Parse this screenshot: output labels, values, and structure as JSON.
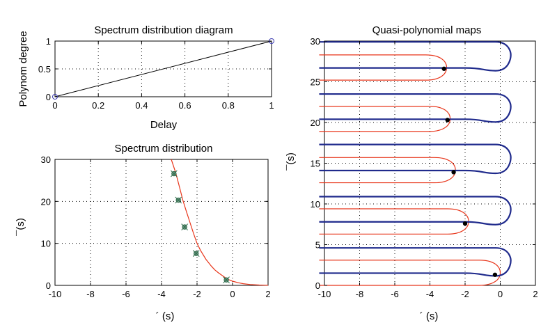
{
  "chart_data": [
    {
      "type": "line",
      "title": "Spectrum distribution diagram",
      "xlabel": "Delay",
      "ylabel": "Polynom degree",
      "xlim": [
        0,
        1
      ],
      "ylim": [
        0,
        1
      ],
      "xticks": [
        "0",
        "0.2",
        "0.4",
        "0.6",
        "0.8",
        "1"
      ],
      "yticks": [
        "0",
        "0.5",
        "1"
      ],
      "grid": true,
      "series": [
        {
          "x": [
            0,
            1
          ],
          "y": [
            0,
            1
          ],
          "color": "#000000",
          "markers": "circle",
          "marker_color": "#3b3bb0"
        }
      ]
    },
    {
      "type": "scatter",
      "title": "Spectrum distribution",
      "xlabel": "´ (s)",
      "ylabel": "¯(s)",
      "xlim": [
        -10,
        2
      ],
      "ylim": [
        0,
        30
      ],
      "xticks": [
        "-10",
        "-8",
        "-6",
        "-4",
        "-2",
        "0",
        "2"
      ],
      "yticks": [
        "0",
        "10",
        "20",
        "30"
      ],
      "grid": true,
      "series": [
        {
          "type": "line",
          "color": "#e8351a",
          "x": [
            -3.45,
            -3.2,
            -3.0,
            -2.8,
            -2.6,
            -2.4,
            -2.2,
            -2.0,
            -1.8,
            -1.5,
            -1.2,
            -1.0,
            -0.8,
            -0.6,
            -0.4,
            -0.2,
            0.0,
            0.3,
            0.6,
            1.0,
            1.5,
            2.0
          ],
          "y": [
            30.0,
            26.8,
            23.6,
            20.3,
            17.6,
            15.0,
            12.4,
            10.0,
            8.3,
            6.2,
            4.6,
            3.7,
            3.0,
            2.4,
            1.8,
            1.35,
            1.0,
            0.65,
            0.4,
            0.2,
            0.08,
            0.02
          ]
        },
        {
          "type": "scatter",
          "color": "#2f6b4a",
          "marker": "star",
          "x": [
            -3.3,
            -3.05,
            -2.7,
            -2.05,
            -0.35
          ],
          "y": [
            26.6,
            20.3,
            13.9,
            7.6,
            1.3
          ]
        }
      ]
    },
    {
      "type": "line",
      "title": "Quasi-polynomial maps",
      "xlabel": "´ (s)",
      "ylabel": "¯(s)",
      "xlim": [
        -10,
        2
      ],
      "ylim": [
        0,
        30
      ],
      "xticks": [
        "-10",
        "-8",
        "-6",
        "-4",
        "-2",
        "0",
        "2"
      ],
      "yticks": [
        "0",
        "5",
        "10",
        "15",
        "20",
        "25",
        "30"
      ],
      "grid": true,
      "series": [
        {
          "color": "#1f2a8c",
          "loops": [
            {
              "y_low": 1.5,
              "y_high": 4.6,
              "x_right": 0.6
            },
            {
              "y_low": 7.8,
              "y_high": 10.9,
              "x_right": 0.6
            },
            {
              "y_low": 14.1,
              "y_high": 17.3,
              "x_right": 0.6
            },
            {
              "y_low": 20.4,
              "y_high": 23.5,
              "x_right": 0.6
            },
            {
              "y_low": 26.7,
              "y_high": 29.9,
              "x_right": 0.6
            }
          ]
        },
        {
          "color": "#e8351a",
          "curves": [
            {
              "y_low": 0.0,
              "y_high": 3.1,
              "x_tip": 0.0
            },
            {
              "y_low": 6.3,
              "y_high": 9.4,
              "x_tip": -1.8
            },
            {
              "y_low": 12.6,
              "y_high": 15.7,
              "x_tip": -2.55
            },
            {
              "y_low": 18.9,
              "y_high": 22.0,
              "x_tip": -2.85
            },
            {
              "y_low": 25.2,
              "y_high": 28.3,
              "x_tip": -3.05
            }
          ]
        },
        {
          "type": "scatter",
          "color": "#000000",
          "x": [
            -0.3,
            -2.0,
            -2.65,
            -3.0,
            -3.2
          ],
          "y": [
            1.3,
            7.6,
            13.9,
            20.3,
            26.6
          ]
        }
      ]
    }
  ]
}
